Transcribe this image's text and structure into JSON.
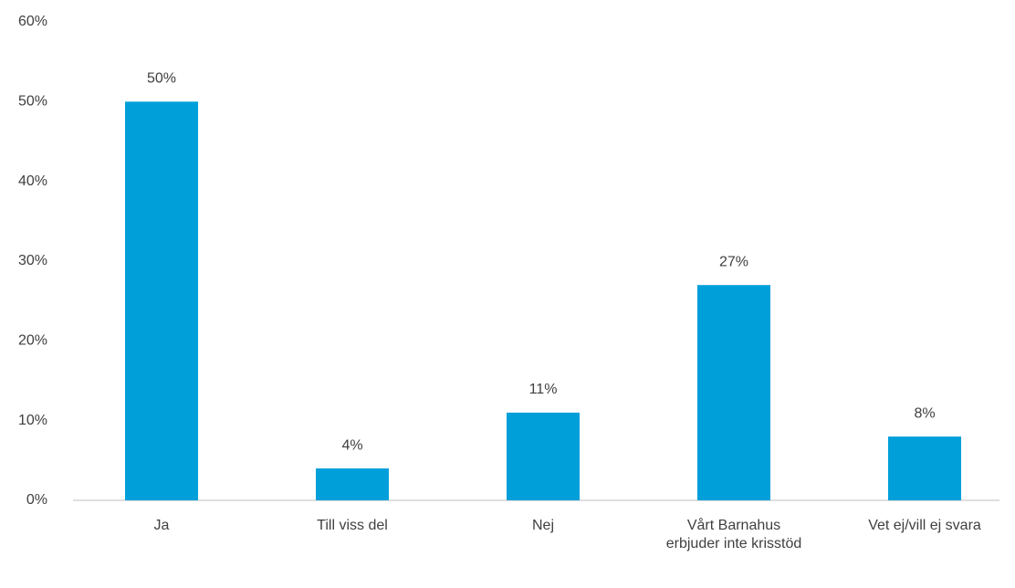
{
  "chart_data": {
    "type": "bar",
    "categories": [
      "Ja",
      "Till viss del",
      "Nej",
      "Vårt Barnahus erbjuder inte krisstöd",
      "Vet ej/vill ej svara"
    ],
    "values": [
      50,
      4,
      11,
      27,
      8
    ],
    "value_labels": [
      "50%",
      "4%",
      "11%",
      "27%",
      "8%"
    ],
    "color": "#009fda",
    "ylim": [
      0,
      60
    ],
    "yticks": [
      {
        "value": 0,
        "label": "0%"
      },
      {
        "value": 10,
        "label": "10%"
      },
      {
        "value": 20,
        "label": "20%"
      },
      {
        "value": 30,
        "label": "30%"
      },
      {
        "value": 40,
        "label": "40%"
      },
      {
        "value": 50,
        "label": "50%"
      },
      {
        "value": 60,
        "label": "60%"
      }
    ],
    "grid": false
  }
}
